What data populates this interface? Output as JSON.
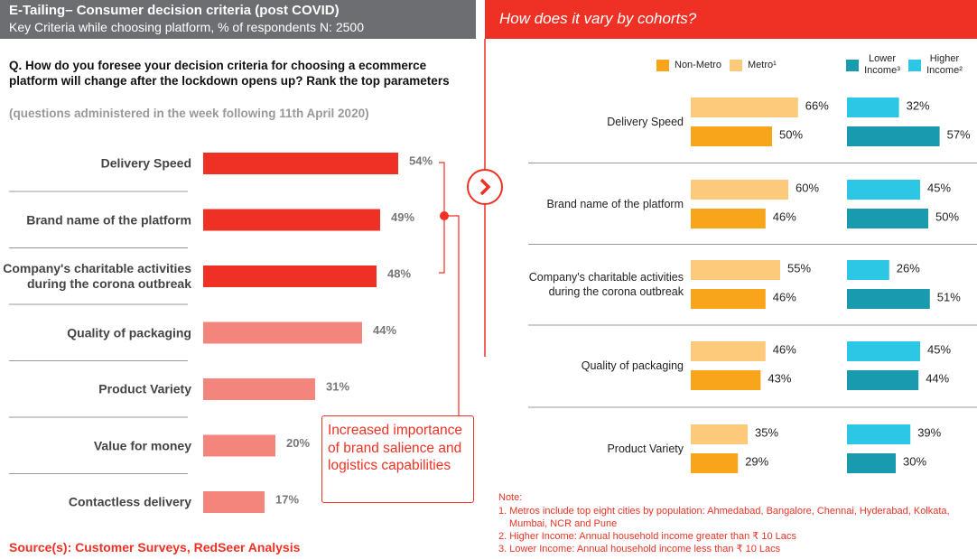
{
  "header": {
    "title": "E-Tailing– Consumer decision criteria (post COVID)",
    "subtitle": "Key Criteria while choosing platform, % of respondents N: 2500"
  },
  "right_header": "How does it vary by cohorts?",
  "question": "Q. How do you foresee your decision criteria for choosing a ecommerce platform will change after the lockdown opens up? Rank the top parameters",
  "question_note": "(questions administered in the week following 11th April 2020)",
  "callout": "Increased importance of brand salience and logistics capabilities",
  "source": "Source(s): Customer Surveys, RedSeer Analysis",
  "note": {
    "title": "Note:",
    "items": [
      "1. Metros include top eight cities by population: Ahmedabad, Bangalore, Chennai, Hyderabad, Kolkata, Mumbai, NCR and Pune",
      "2. Higher Income: Annual household income greater than ₹ 10 Lacs",
      "3. Lower Income: Annual household income less than ₹ 10 Lacs"
    ]
  },
  "chart_data": [
    {
      "type": "bar",
      "orientation": "horizontal",
      "categories": [
        "Delivery Speed",
        "Brand name of the platform",
        "Company's charitable activities during the corona outbreak",
        "Quality of packaging",
        "Product Variety",
        "Value for money",
        "Contactless delivery"
      ],
      "values": [
        54,
        49,
        48,
        44,
        31,
        20,
        17
      ],
      "value_labels": [
        "54%",
        "49%",
        "48%",
        "44%",
        "31%",
        "20%",
        "17%"
      ],
      "colors": [
        "#ee3124",
        "#ee3124",
        "#ee3124",
        "#f4857c",
        "#f4857c",
        "#f4857c",
        "#f4857c"
      ]
    },
    {
      "type": "grouped-bar",
      "orientation": "horizontal",
      "categories": [
        "Delivery Speed",
        "Brand name of the platform",
        "Company's charitable activities during the corona outbreak",
        "Quality of packaging",
        "Product Variety"
      ],
      "series": [
        {
          "name": "Non-Metro",
          "color": "#f9a51b",
          "values": [
            50,
            46,
            46,
            43,
            29
          ],
          "value_labels": [
            "50%",
            "46%",
            "46%",
            "43%",
            "29%"
          ]
        },
        {
          "name": "Metro¹",
          "color": "#fdc97a",
          "values": [
            66,
            60,
            55,
            46,
            35
          ],
          "value_labels": [
            "66%",
            "60%",
            "55%",
            "46%",
            "35%"
          ]
        },
        {
          "name": "Lower Income³",
          "color": "#1a9aaf",
          "values": [
            57,
            50,
            51,
            44,
            30
          ],
          "value_labels": [
            "57%",
            "50%",
            "51%",
            "44%",
            "30%"
          ]
        },
        {
          "name": "Higher Income²",
          "color": "#2bc7e4",
          "values": [
            32,
            45,
            26,
            45,
            39
          ],
          "value_labels": [
            "32%",
            "45%",
            "26%",
            "45%",
            "39%"
          ]
        }
      ]
    }
  ]
}
